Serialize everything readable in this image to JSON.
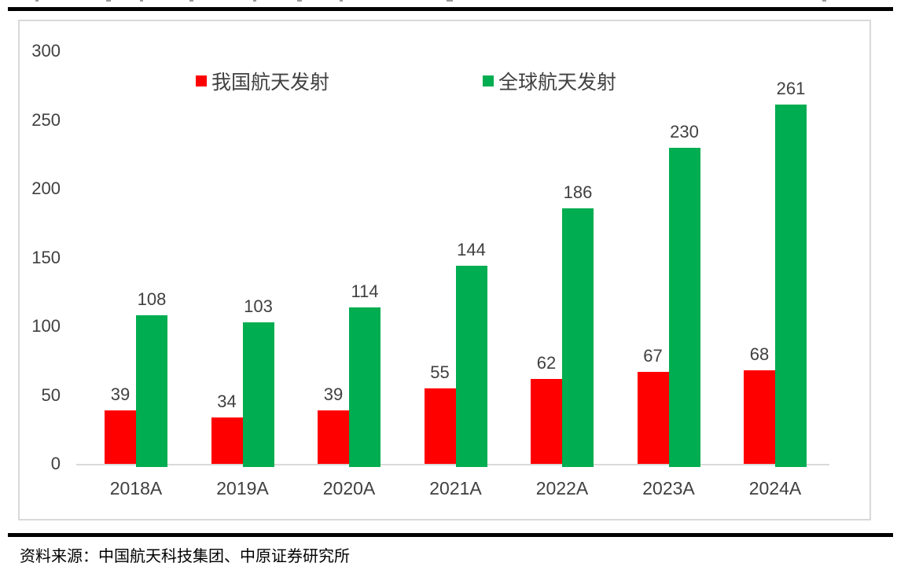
{
  "chart_data": {
    "type": "bar",
    "categories": [
      "2018A",
      "2019A",
      "2020A",
      "2021A",
      "2022A",
      "2023A",
      "2024A"
    ],
    "series": [
      {
        "name": "我国航天发射",
        "color": "#FF0000",
        "values": [
          39,
          34,
          39,
          55,
          62,
          67,
          68
        ]
      },
      {
        "name": "全球航天发射",
        "color": "#00AD50",
        "values": [
          108,
          103,
          114,
          144,
          186,
          230,
          261
        ]
      }
    ],
    "title": "",
    "xlabel": "",
    "ylabel": "",
    "ylim": [
      0,
      300
    ],
    "yticks": [
      0,
      50,
      100,
      150,
      200,
      250,
      300
    ],
    "grid": false,
    "legend_position": "top-center",
    "axis_color": "#D9D9D9",
    "label_color": "#404040"
  },
  "footer": {
    "source_text": "资料来源：中国航天科技集团、中原证券研究所"
  }
}
